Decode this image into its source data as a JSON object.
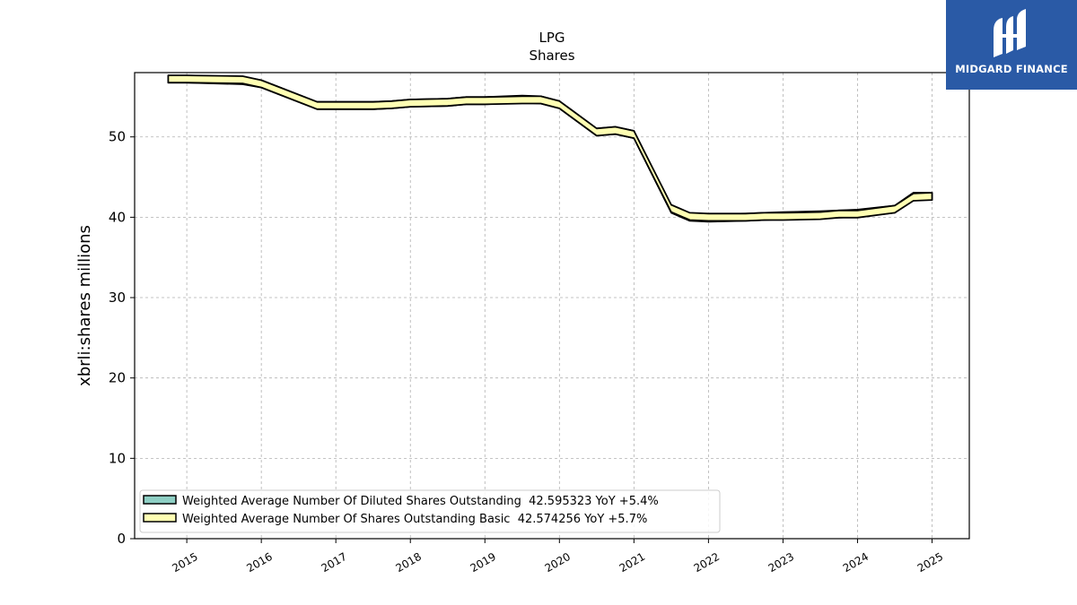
{
  "brand": {
    "name": "MIDGARD FINANCE",
    "logo_icon": "midgard-m-icon",
    "color": "#2a5aa6"
  },
  "chart_data": {
    "type": "line",
    "title": "LPG",
    "subtitle": "Shares",
    "xlabel": "",
    "ylabel": "xbrli:shares millions",
    "xlim": [
      2014.3,
      2025.5
    ],
    "ylim": [
      0,
      58
    ],
    "x_ticks": [
      "2015",
      "2016",
      "2017",
      "2018",
      "2019",
      "2020",
      "2021",
      "2022",
      "2023",
      "2024",
      "2025"
    ],
    "y_ticks": [
      "0",
      "10",
      "20",
      "30",
      "40",
      "50"
    ],
    "grid": true,
    "legend_position": "lower-left",
    "series": [
      {
        "name": "Weighted Average Number Of Diluted Shares Outstanding  42.595323 YoY +5.4%",
        "color": "#8ecfc4",
        "x": [
          2014.75,
          2015.0,
          2015.75,
          2016.0,
          2016.75,
          2017.0,
          2017.5,
          2017.75,
          2018.0,
          2018.5,
          2018.75,
          2019.0,
          2019.5,
          2019.75,
          2020.0,
          2020.5,
          2020.75,
          2021.0,
          2021.5,
          2021.75,
          2022.0,
          2022.5,
          2022.75,
          2023.0,
          2023.5,
          2023.75,
          2024.0,
          2024.5,
          2024.75,
          2025.0
        ],
        "values": [
          57.2,
          57.2,
          57.0,
          56.6,
          53.9,
          53.9,
          53.9,
          54.0,
          54.2,
          54.3,
          54.5,
          54.5,
          54.7,
          54.6,
          54.0,
          50.6,
          50.8,
          50.3,
          41.0,
          40.0,
          39.9,
          40.0,
          40.1,
          40.2,
          40.3,
          40.4,
          40.5,
          41.0,
          42.6,
          42.6
        ]
      },
      {
        "name": "Weighted Average Number Of Shares Outstanding Basic  42.574256 YoY +5.7%",
        "color": "#ffffb3",
        "x": [
          2014.75,
          2015.0,
          2015.75,
          2016.0,
          2016.75,
          2017.0,
          2017.5,
          2017.75,
          2018.0,
          2018.5,
          2018.75,
          2019.0,
          2019.5,
          2019.75,
          2020.0,
          2020.5,
          2020.75,
          2021.0,
          2021.5,
          2021.75,
          2022.0,
          2022.5,
          2022.75,
          2023.0,
          2023.5,
          2023.75,
          2024.0,
          2024.5,
          2024.75,
          2025.0
        ],
        "values": [
          57.2,
          57.2,
          57.1,
          56.6,
          53.9,
          53.9,
          53.9,
          54.0,
          54.2,
          54.3,
          54.5,
          54.5,
          54.6,
          54.6,
          54.0,
          50.6,
          50.8,
          50.3,
          41.1,
          40.1,
          40.0,
          40.0,
          40.1,
          40.1,
          40.2,
          40.4,
          40.4,
          41.0,
          42.5,
          42.6
        ]
      }
    ]
  }
}
